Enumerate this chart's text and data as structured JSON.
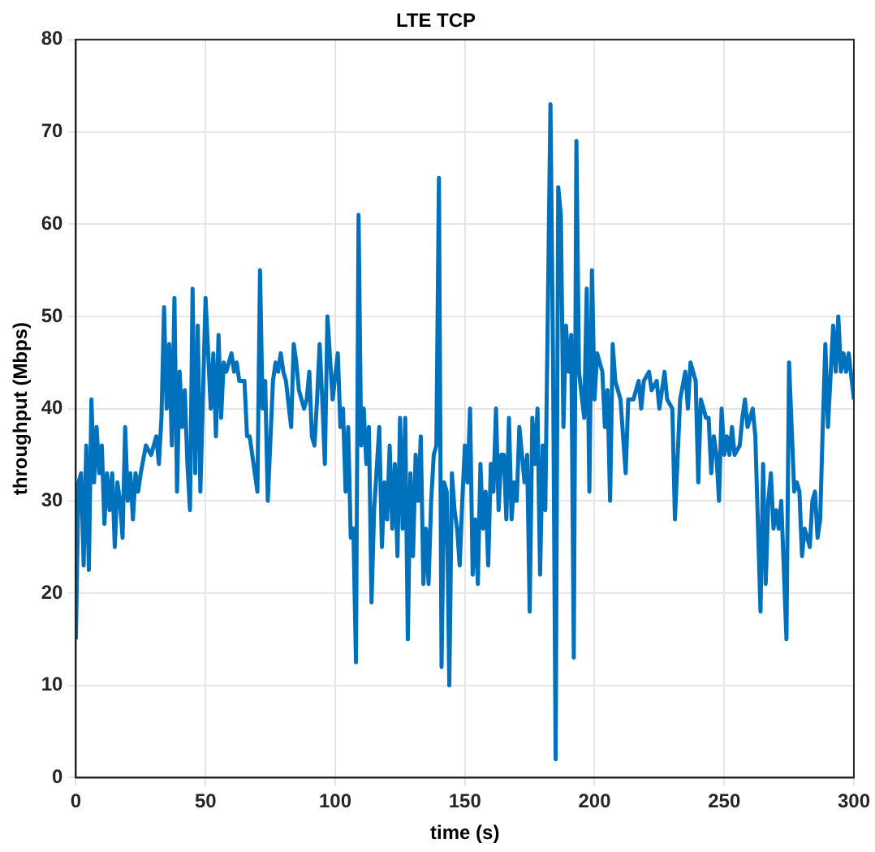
{
  "chart_data": {
    "type": "line",
    "title": "LTE TCP",
    "xlabel": "time (s)",
    "ylabel": "throughput (Mbps)",
    "xlim": [
      0,
      300
    ],
    "xticks": [
      0,
      50,
      100,
      150,
      200,
      250,
      300
    ],
    "ylim": [
      0,
      80
    ],
    "yticks": [
      0,
      10,
      20,
      30,
      40,
      50,
      60,
      70,
      80
    ],
    "grid": true,
    "legend": false,
    "marker": "none",
    "line_style": "solid",
    "series": [
      {
        "color": "#0072bd",
        "x": [
          0,
          1,
          2,
          3,
          4,
          5,
          6,
          7,
          8,
          9,
          10,
          11,
          12,
          13,
          14,
          15,
          16,
          17,
          18,
          19,
          20,
          21,
          22,
          23,
          24,
          25,
          27,
          29,
          31,
          32,
          33,
          34,
          35,
          36,
          37,
          38,
          39,
          40,
          41,
          42,
          43,
          44,
          45,
          46,
          47,
          48,
          50,
          52,
          53,
          54,
          55,
          56,
          57,
          58,
          60,
          61,
          62,
          63,
          65,
          66,
          67,
          70,
          71,
          72,
          73,
          74,
          76,
          77,
          78,
          79,
          80,
          81,
          83,
          84,
          85,
          86,
          88,
          89,
          90,
          91,
          92,
          93,
          94,
          95,
          96,
          97,
          99,
          101,
          102,
          103,
          104,
          105,
          106,
          107,
          108,
          109,
          110,
          111,
          112,
          113,
          114,
          115,
          117,
          118,
          119,
          120,
          121,
          122,
          123,
          124,
          125,
          126,
          127,
          128,
          129,
          130,
          131,
          132,
          133,
          134,
          135,
          136,
          137,
          138,
          139,
          140,
          141,
          142,
          143,
          144,
          145,
          146,
          147,
          148,
          149,
          150,
          151,
          152,
          153,
          154,
          155,
          156,
          157,
          158,
          159,
          160,
          161,
          162,
          163,
          164,
          165,
          166,
          167,
          168,
          169,
          170,
          171,
          172,
          173,
          174,
          175,
          176,
          177,
          178,
          179,
          180,
          181,
          182,
          183,
          184,
          185,
          186,
          187,
          188,
          189,
          190,
          191,
          192,
          193,
          194,
          196,
          197,
          198,
          199,
          200,
          201,
          203,
          204,
          205,
          206,
          207,
          208,
          210,
          212,
          213,
          215,
          217,
          218,
          219,
          221,
          222,
          224,
          225,
          227,
          228,
          230,
          231,
          233,
          235,
          236,
          237,
          239,
          240,
          241,
          243,
          244,
          245,
          246,
          247,
          248,
          249,
          250,
          251,
          252,
          253,
          254,
          256,
          257,
          258,
          259,
          261,
          262,
          264,
          265,
          266,
          267,
          268,
          269,
          270,
          271,
          272,
          274,
          275,
          276,
          277,
          278,
          279,
          280,
          281,
          283,
          284,
          285,
          286,
          287,
          288,
          289,
          290,
          292,
          293,
          294,
          295,
          296,
          297,
          298,
          300
        ],
        "values": [
          15,
          32,
          33,
          23,
          36,
          22.5,
          41,
          32,
          38,
          33,
          36,
          27.5,
          33,
          29,
          33,
          25,
          32,
          30,
          26,
          38,
          30,
          33,
          28,
          33,
          31,
          33,
          36,
          35,
          37,
          34,
          39,
          51,
          40,
          47,
          36,
          52,
          31,
          44,
          38,
          42,
          34,
          29,
          53,
          33,
          49,
          31,
          52,
          40,
          46,
          37,
          48,
          39,
          45,
          44,
          46,
          44,
          45,
          43,
          43,
          37,
          37,
          31,
          55,
          40,
          43,
          30,
          43,
          45,
          44,
          46,
          44,
          43,
          38,
          47,
          45,
          42,
          40,
          41,
          44,
          37,
          36,
          41,
          47,
          41,
          34,
          50,
          41,
          46,
          38,
          40,
          31,
          38,
          26,
          27,
          12.5,
          61,
          36,
          40,
          34,
          38,
          19,
          29,
          38,
          25,
          32,
          28,
          36,
          27,
          34,
          24,
          39,
          27,
          39,
          15,
          33,
          24,
          35,
          30,
          37,
          21,
          27,
          21,
          30,
          35,
          36,
          65,
          12,
          32,
          31,
          10,
          33,
          29,
          27,
          23,
          30,
          36,
          32,
          40,
          22,
          28,
          21,
          34,
          27,
          31,
          23,
          34,
          31,
          40,
          29,
          35,
          35,
          28,
          39,
          28,
          32,
          30,
          38,
          35,
          32,
          35,
          18,
          39,
          34,
          40,
          22,
          36,
          29,
          51,
          73,
          45,
          2,
          64,
          61,
          38,
          49,
          44,
          48,
          13,
          69,
          44,
          39,
          53,
          31,
          55,
          41,
          46,
          44,
          38,
          42,
          30,
          47,
          43,
          41,
          33,
          41,
          41,
          43,
          40,
          43,
          44,
          42,
          43,
          40,
          44,
          41,
          40,
          28,
          41,
          44,
          40,
          45,
          43,
          32,
          41,
          39,
          39,
          33,
          37,
          35,
          30,
          40,
          35,
          37,
          35,
          38,
          35,
          36,
          39,
          41,
          38,
          40,
          37,
          18,
          34,
          21,
          30,
          33,
          27,
          29,
          27,
          30,
          15,
          45,
          38,
          31,
          32,
          31,
          24,
          27,
          25,
          30,
          31,
          26,
          28,
          38,
          47,
          38,
          49,
          44,
          50,
          44,
          46,
          44,
          46,
          41
        ]
      }
    ]
  }
}
